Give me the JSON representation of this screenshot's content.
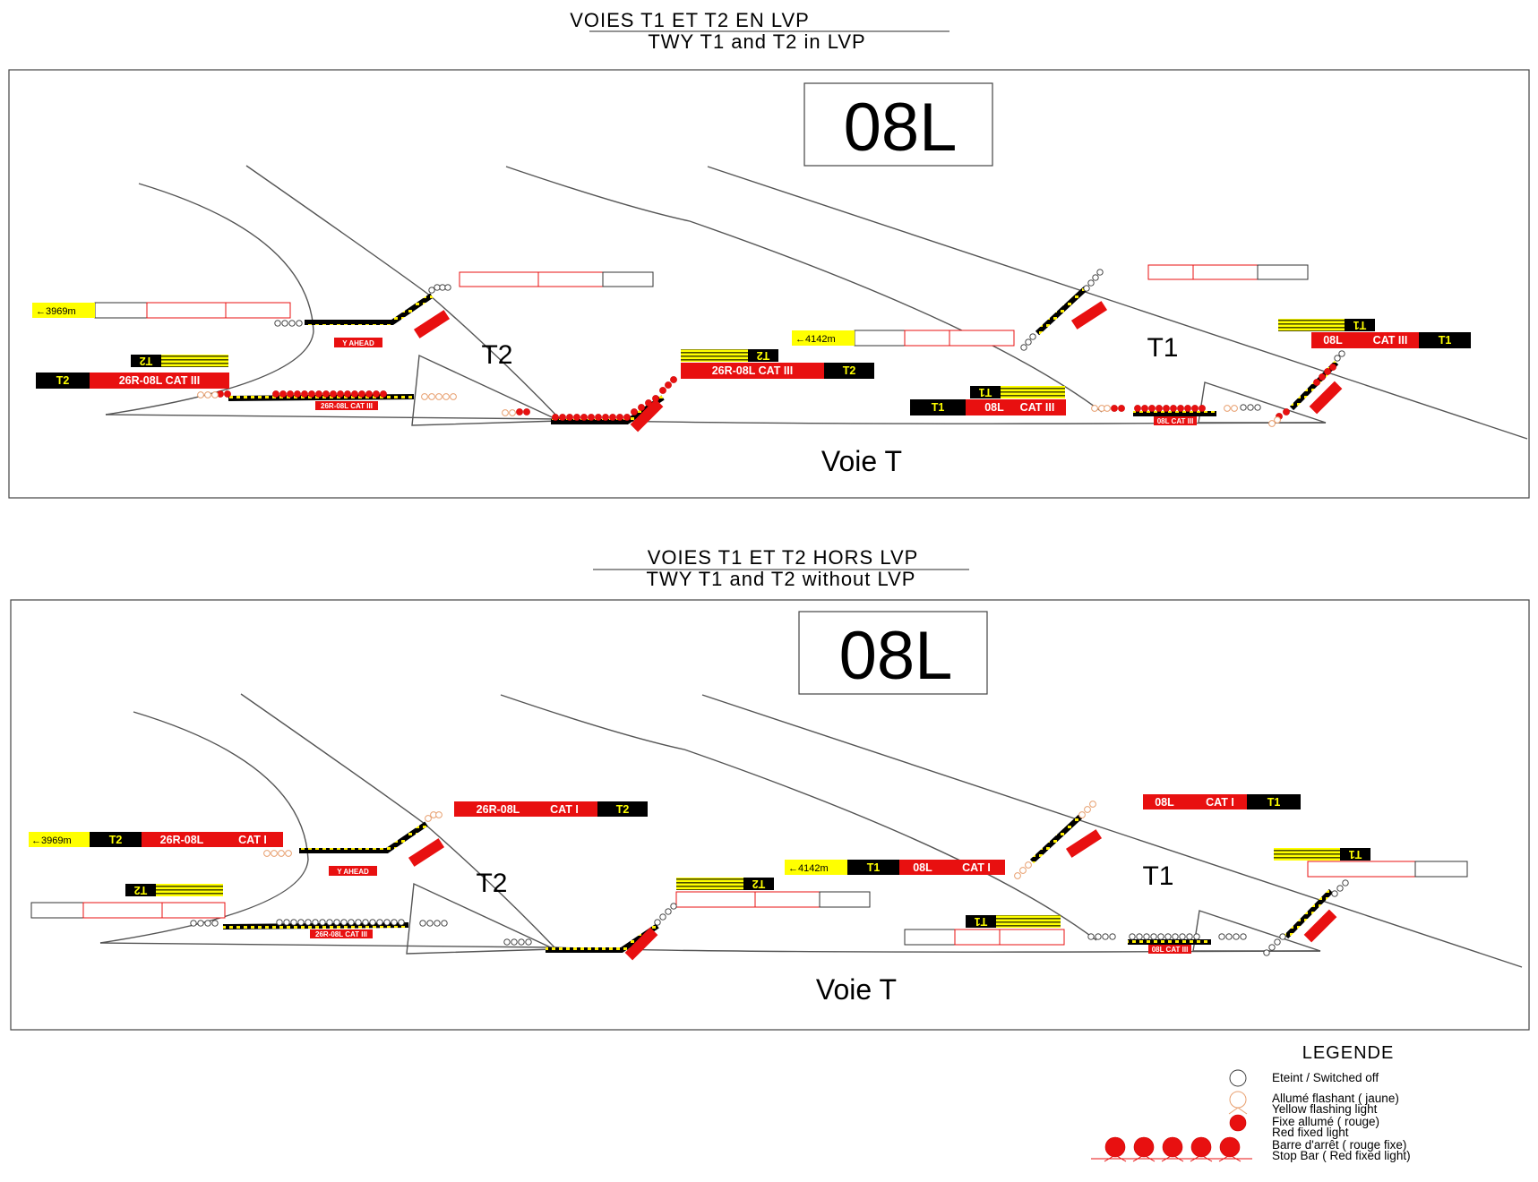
{
  "titles": {
    "top_fr": "VOIES T1 ET T2 EN LVP",
    "top_en": "TWY T1 and T2 in LVP",
    "bottom_fr": "VOIES T1 ET T2 HORS LVP",
    "bottom_en": "TWY T1 and T2 without LVP"
  },
  "runway_label": "08L",
  "labels": {
    "t1": "T1",
    "t2": "T2",
    "voie": "Voie T",
    "y_ahead": "Y AHEAD"
  },
  "distances": {
    "d1": "←3969m",
    "d2": "←4142m"
  },
  "signs": {
    "lvp_t2_left": [
      "T2",
      "26R-08L  CAT III"
    ],
    "lvp_t2_mid": [
      "26R-08L  CAT III",
      "T2"
    ],
    "lvp_t1_mid": [
      "T1",
      "08L",
      "CAT III"
    ],
    "lvp_t1_right": [
      "08L",
      "CAT III",
      "T1"
    ],
    "hors_left": [
      "T2",
      "26R-08L",
      "CAT I"
    ],
    "hors_top": [
      "26R-08L",
      "CAT I",
      "T2"
    ],
    "hors_mid": [
      "T1",
      "08L",
      "CAT I"
    ],
    "hors_right": [
      "08L",
      "CAT I",
      "T1"
    ],
    "bar_26r": "26R-08L CAT III",
    "bar_08l": "08L CAT III",
    "flag_t1": "T1",
    "flag_t2": "T2"
  },
  "legend": {
    "title": "LEGENDE",
    "off": "Eteint / Switched off",
    "flash_fr": "Allumé flashant ( jaune)",
    "flash_en": "Yellow flashing light",
    "red_fr": "Fixe allumé ( rouge)",
    "red_en": "Red fixed light",
    "bar_fr": "Barre d'arrêt ( rouge fixe)",
    "bar_en": "Stop Bar ( Red fixed light)"
  },
  "colors": {
    "red": "#e81010",
    "yellow": "#ffff00",
    "black": "#000000",
    "flash": "#e8a070"
  }
}
